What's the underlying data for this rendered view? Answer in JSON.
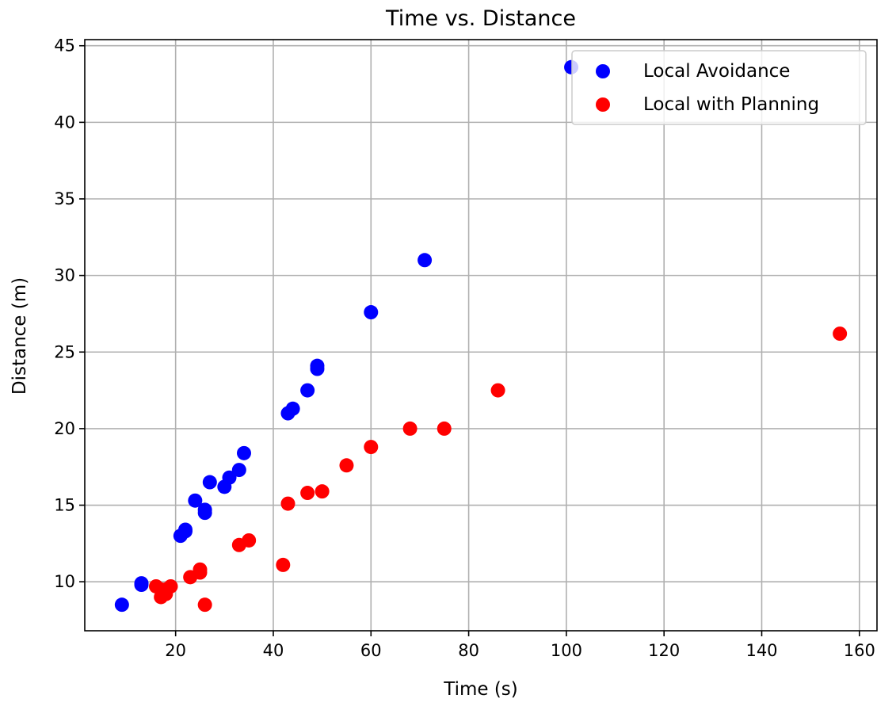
{
  "chart_data": {
    "type": "scatter",
    "title": "Time vs. Distance",
    "xlabel": "Time (s)",
    "ylabel": "Distance (m)",
    "xlim": [
      1.4,
      163.6
    ],
    "ylim": [
      6.8,
      45.4
    ],
    "xticks": [
      20,
      40,
      60,
      80,
      100,
      120,
      140,
      160
    ],
    "yticks": [
      10,
      15,
      20,
      25,
      30,
      35,
      40,
      45
    ],
    "grid": true,
    "legend_position": "top-right",
    "series": [
      {
        "name": "Local Avoidance",
        "color": "#0000ff",
        "x": [
          9,
          13,
          13,
          21,
          22,
          22,
          24,
          26,
          26,
          27,
          30,
          31,
          33,
          34,
          43,
          44,
          47,
          49,
          49,
          60,
          71,
          101
        ],
        "y": [
          8.5,
          9.8,
          9.9,
          13.0,
          13.3,
          13.4,
          15.3,
          14.5,
          14.7,
          16.5,
          16.2,
          16.8,
          17.3,
          18.4,
          21.0,
          21.3,
          22.5,
          23.9,
          24.1,
          27.6,
          31.0,
          43.6
        ]
      },
      {
        "name": "Local with Planning",
        "color": "#ff0000",
        "x": [
          16,
          17,
          17,
          18,
          18,
          19,
          23,
          25,
          25,
          26,
          33,
          35,
          42,
          43,
          47,
          50,
          55,
          60,
          68,
          75,
          86,
          156
        ],
        "y": [
          9.7,
          9.0,
          9.5,
          9.2,
          9.5,
          9.7,
          10.3,
          10.6,
          10.8,
          8.5,
          12.4,
          12.7,
          11.1,
          15.1,
          15.8,
          15.9,
          17.6,
          18.8,
          20.0,
          20.0,
          22.5,
          26.2
        ]
      }
    ]
  }
}
